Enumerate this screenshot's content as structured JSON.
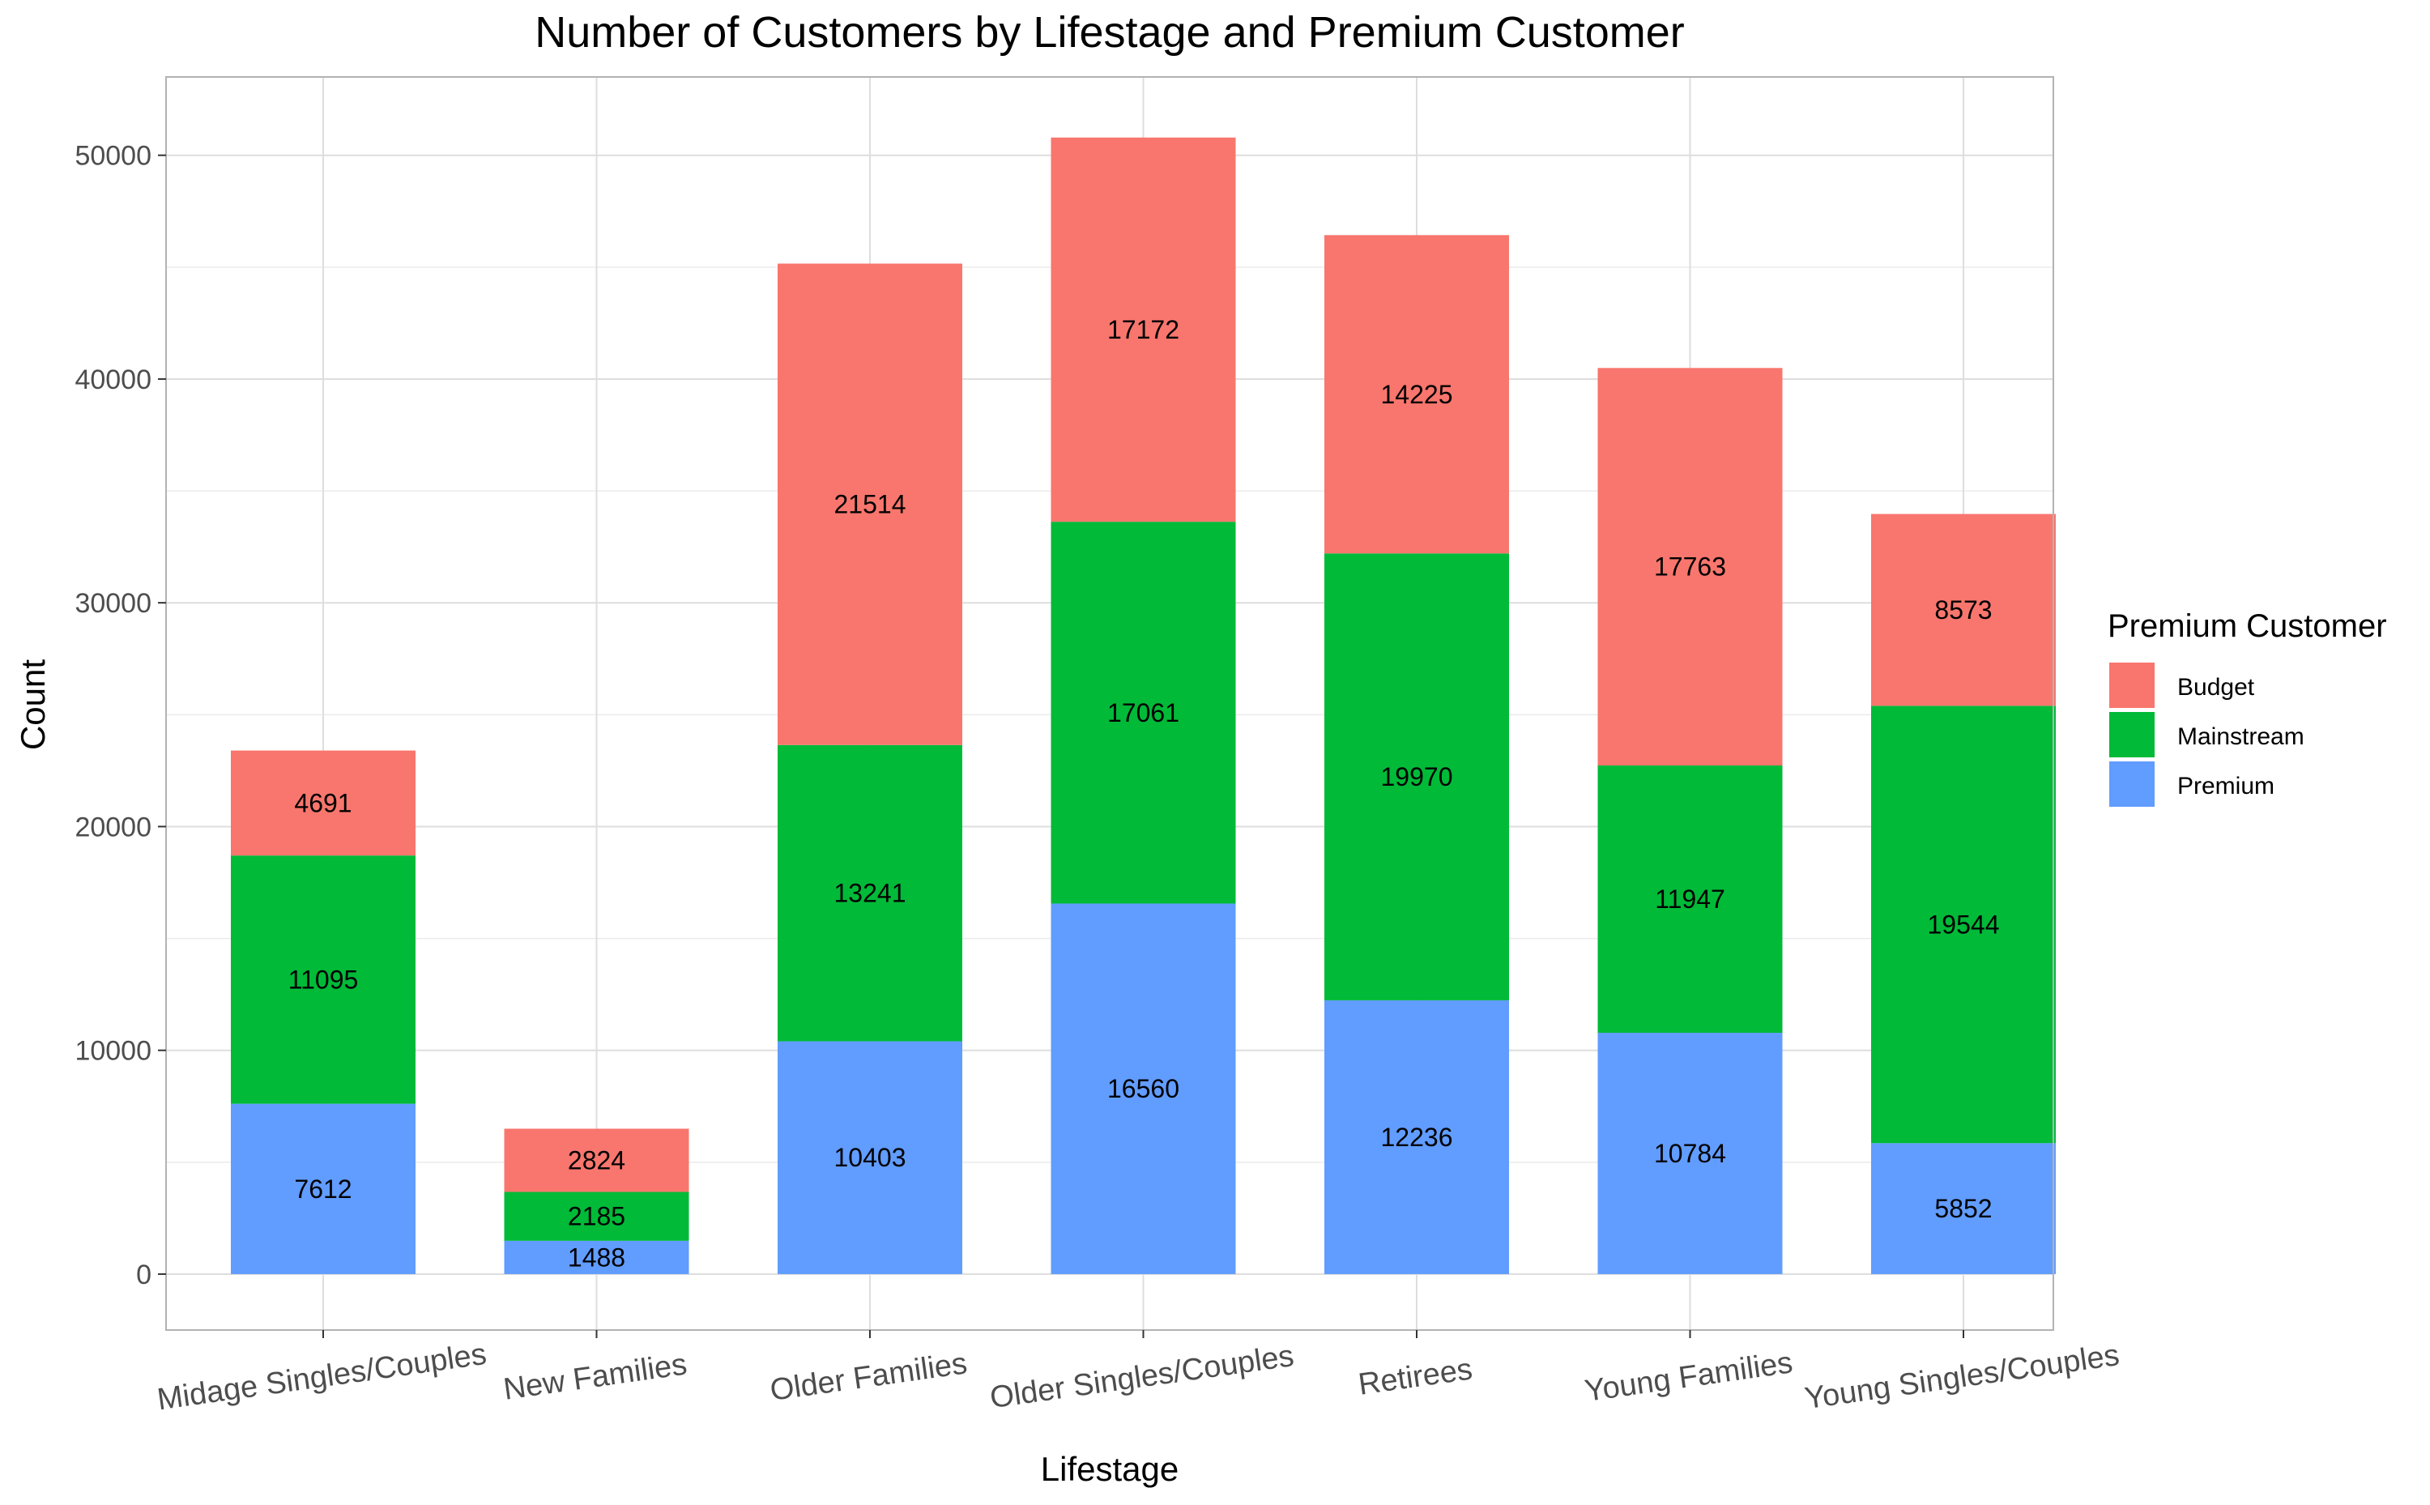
{
  "chart_data": {
    "type": "bar",
    "stacked": true,
    "title": "Number of Customers by Lifestage and Premium Customer",
    "xlabel": "Lifestage",
    "ylabel": "Count",
    "ylim": [
      -2500,
      53500
    ],
    "yticks": [
      0,
      10000,
      20000,
      30000,
      40000,
      50000
    ],
    "grid": true,
    "legend": {
      "title": "Premium Customer",
      "placement": "right",
      "entries": [
        "Budget",
        "Mainstream",
        "Premium"
      ]
    },
    "categories": [
      "Midage Singles/Couples",
      "New Families",
      "Older Families",
      "Older Singles/Couples",
      "Retirees",
      "Young Families",
      "Young Singles/Couples"
    ],
    "series": [
      {
        "name": "Premium",
        "color": "#619CFF",
        "values": [
          7612,
          1488,
          10403,
          16560,
          12236,
          10784,
          5852
        ]
      },
      {
        "name": "Mainstream",
        "color": "#00BA38",
        "values": [
          11095,
          2185,
          13241,
          17061,
          19970,
          11947,
          19544
        ]
      },
      {
        "name": "Budget",
        "color": "#F8766D",
        "values": [
          4691,
          2824,
          21514,
          17172,
          14225,
          17763,
          8573
        ]
      }
    ]
  }
}
